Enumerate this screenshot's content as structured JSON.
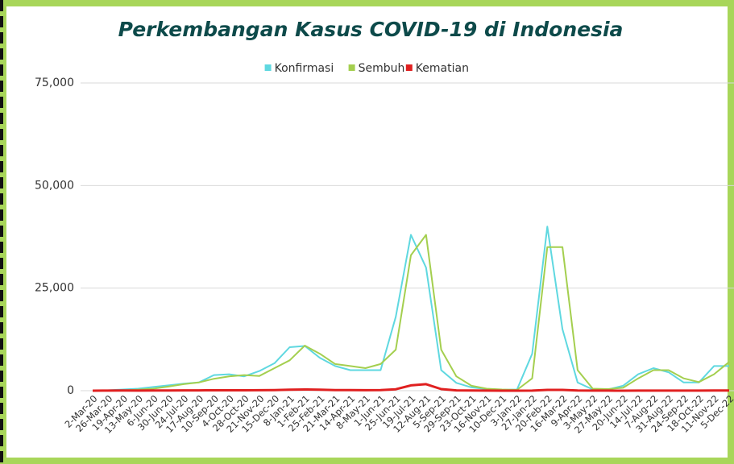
{
  "chart_data": {
    "type": "line",
    "title": "Perkembangan Kasus COVID-19 di Indonesia",
    "categories": [
      "2-Mar-20",
      "26-Mar-20",
      "19-Apr-20",
      "13-May-20",
      "6-Jun-20",
      "30-Jun-20",
      "24-Jul-20",
      "17-Aug-20",
      "10-Sep-20",
      "4-Oct-20",
      "28-Oct-20",
      "21-Nov-20",
      "15-Dec-20",
      "8-Jan-21",
      "1-Feb-21",
      "25-Feb-21",
      "21-Mar-21",
      "14-Apr-21",
      "8-May-21",
      "1-Jun-21",
      "25-Jun-21",
      "19-Jul-21",
      "12-Aug-21",
      "5-Sep-21",
      "29-Sep-21",
      "23-Oct-21",
      "16-Nov-21",
      "10-Dec-21",
      "3-Jan-22",
      "27-Jan-22",
      "20-Feb-22",
      "16-Mar-22",
      "9-Apr-22",
      "3-May-22",
      "27-May-22",
      "20-Jun-22",
      "14-Jul-22",
      "7-Aug-22",
      "31-Aug-22",
      "24-Sep-22",
      "18-Oct-22",
      "11-Nov-22",
      "5-Dec-22"
    ],
    "series": [
      {
        "name": "Konfirmasi",
        "color": "#5fd8e0",
        "values": [
          2,
          100,
          300,
          500,
          900,
          1300,
          1700,
          2000,
          3800,
          4000,
          3500,
          4800,
          6700,
          10600,
          10900,
          8000,
          6000,
          5000,
          5000,
          5000,
          18000,
          38000,
          30000,
          5000,
          1900,
          800,
          400,
          200,
          300,
          9000,
          40000,
          15000,
          2000,
          300,
          300,
          1200,
          4000,
          5500,
          4500,
          2000,
          2000,
          6000,
          6000
        ]
      },
      {
        "name": "Sembuh",
        "color": "#a4cf4f",
        "values": [
          0,
          10,
          100,
          250,
          500,
          1000,
          1600,
          2000,
          2900,
          3500,
          3800,
          3600,
          5500,
          7400,
          11000,
          9000,
          6500,
          6000,
          5500,
          6500,
          10000,
          33000,
          38000,
          10000,
          3500,
          1200,
          500,
          300,
          200,
          3000,
          35000,
          35000,
          5000,
          500,
          400,
          700,
          3000,
          5000,
          5000,
          3000,
          2100,
          4000,
          7000
        ]
      },
      {
        "name": "Kematian",
        "color": "#e02020",
        "values": [
          0,
          20,
          40,
          20,
          50,
          60,
          80,
          80,
          100,
          100,
          100,
          110,
          150,
          230,
          300,
          250,
          150,
          130,
          120,
          150,
          350,
          1300,
          1600,
          400,
          80,
          30,
          15,
          8,
          5,
          20,
          200,
          200,
          60,
          20,
          10,
          5,
          10,
          20,
          20,
          20,
          20,
          30,
          30
        ]
      }
    ],
    "ylim": [
      0,
      75000
    ],
    "yticks": [
      0,
      {
        "value": 25000,
        "label": "25,000"
      },
      {
        "value": 50000,
        "label": "50,000"
      },
      {
        "value": 75000,
        "label": "75,000"
      }
    ],
    "grid": true,
    "legend": "top"
  }
}
